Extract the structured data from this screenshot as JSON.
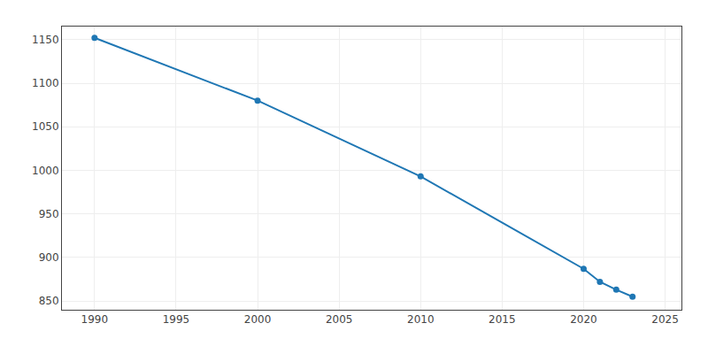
{
  "chart_data": {
    "type": "line",
    "x": [
      1990,
      2000,
      2010,
      2020,
      2021,
      2022,
      2023
    ],
    "values": [
      1152,
      1080,
      993,
      887,
      872,
      863,
      855
    ],
    "marker": "circle",
    "xlim": [
      1988,
      2026
    ],
    "ylim": [
      840,
      1165
    ],
    "xticks": [
      1990,
      1995,
      2000,
      2005,
      2010,
      2015,
      2020,
      2025
    ],
    "yticks": [
      850,
      900,
      950,
      1000,
      1050,
      1100,
      1150
    ],
    "grid": true
  }
}
